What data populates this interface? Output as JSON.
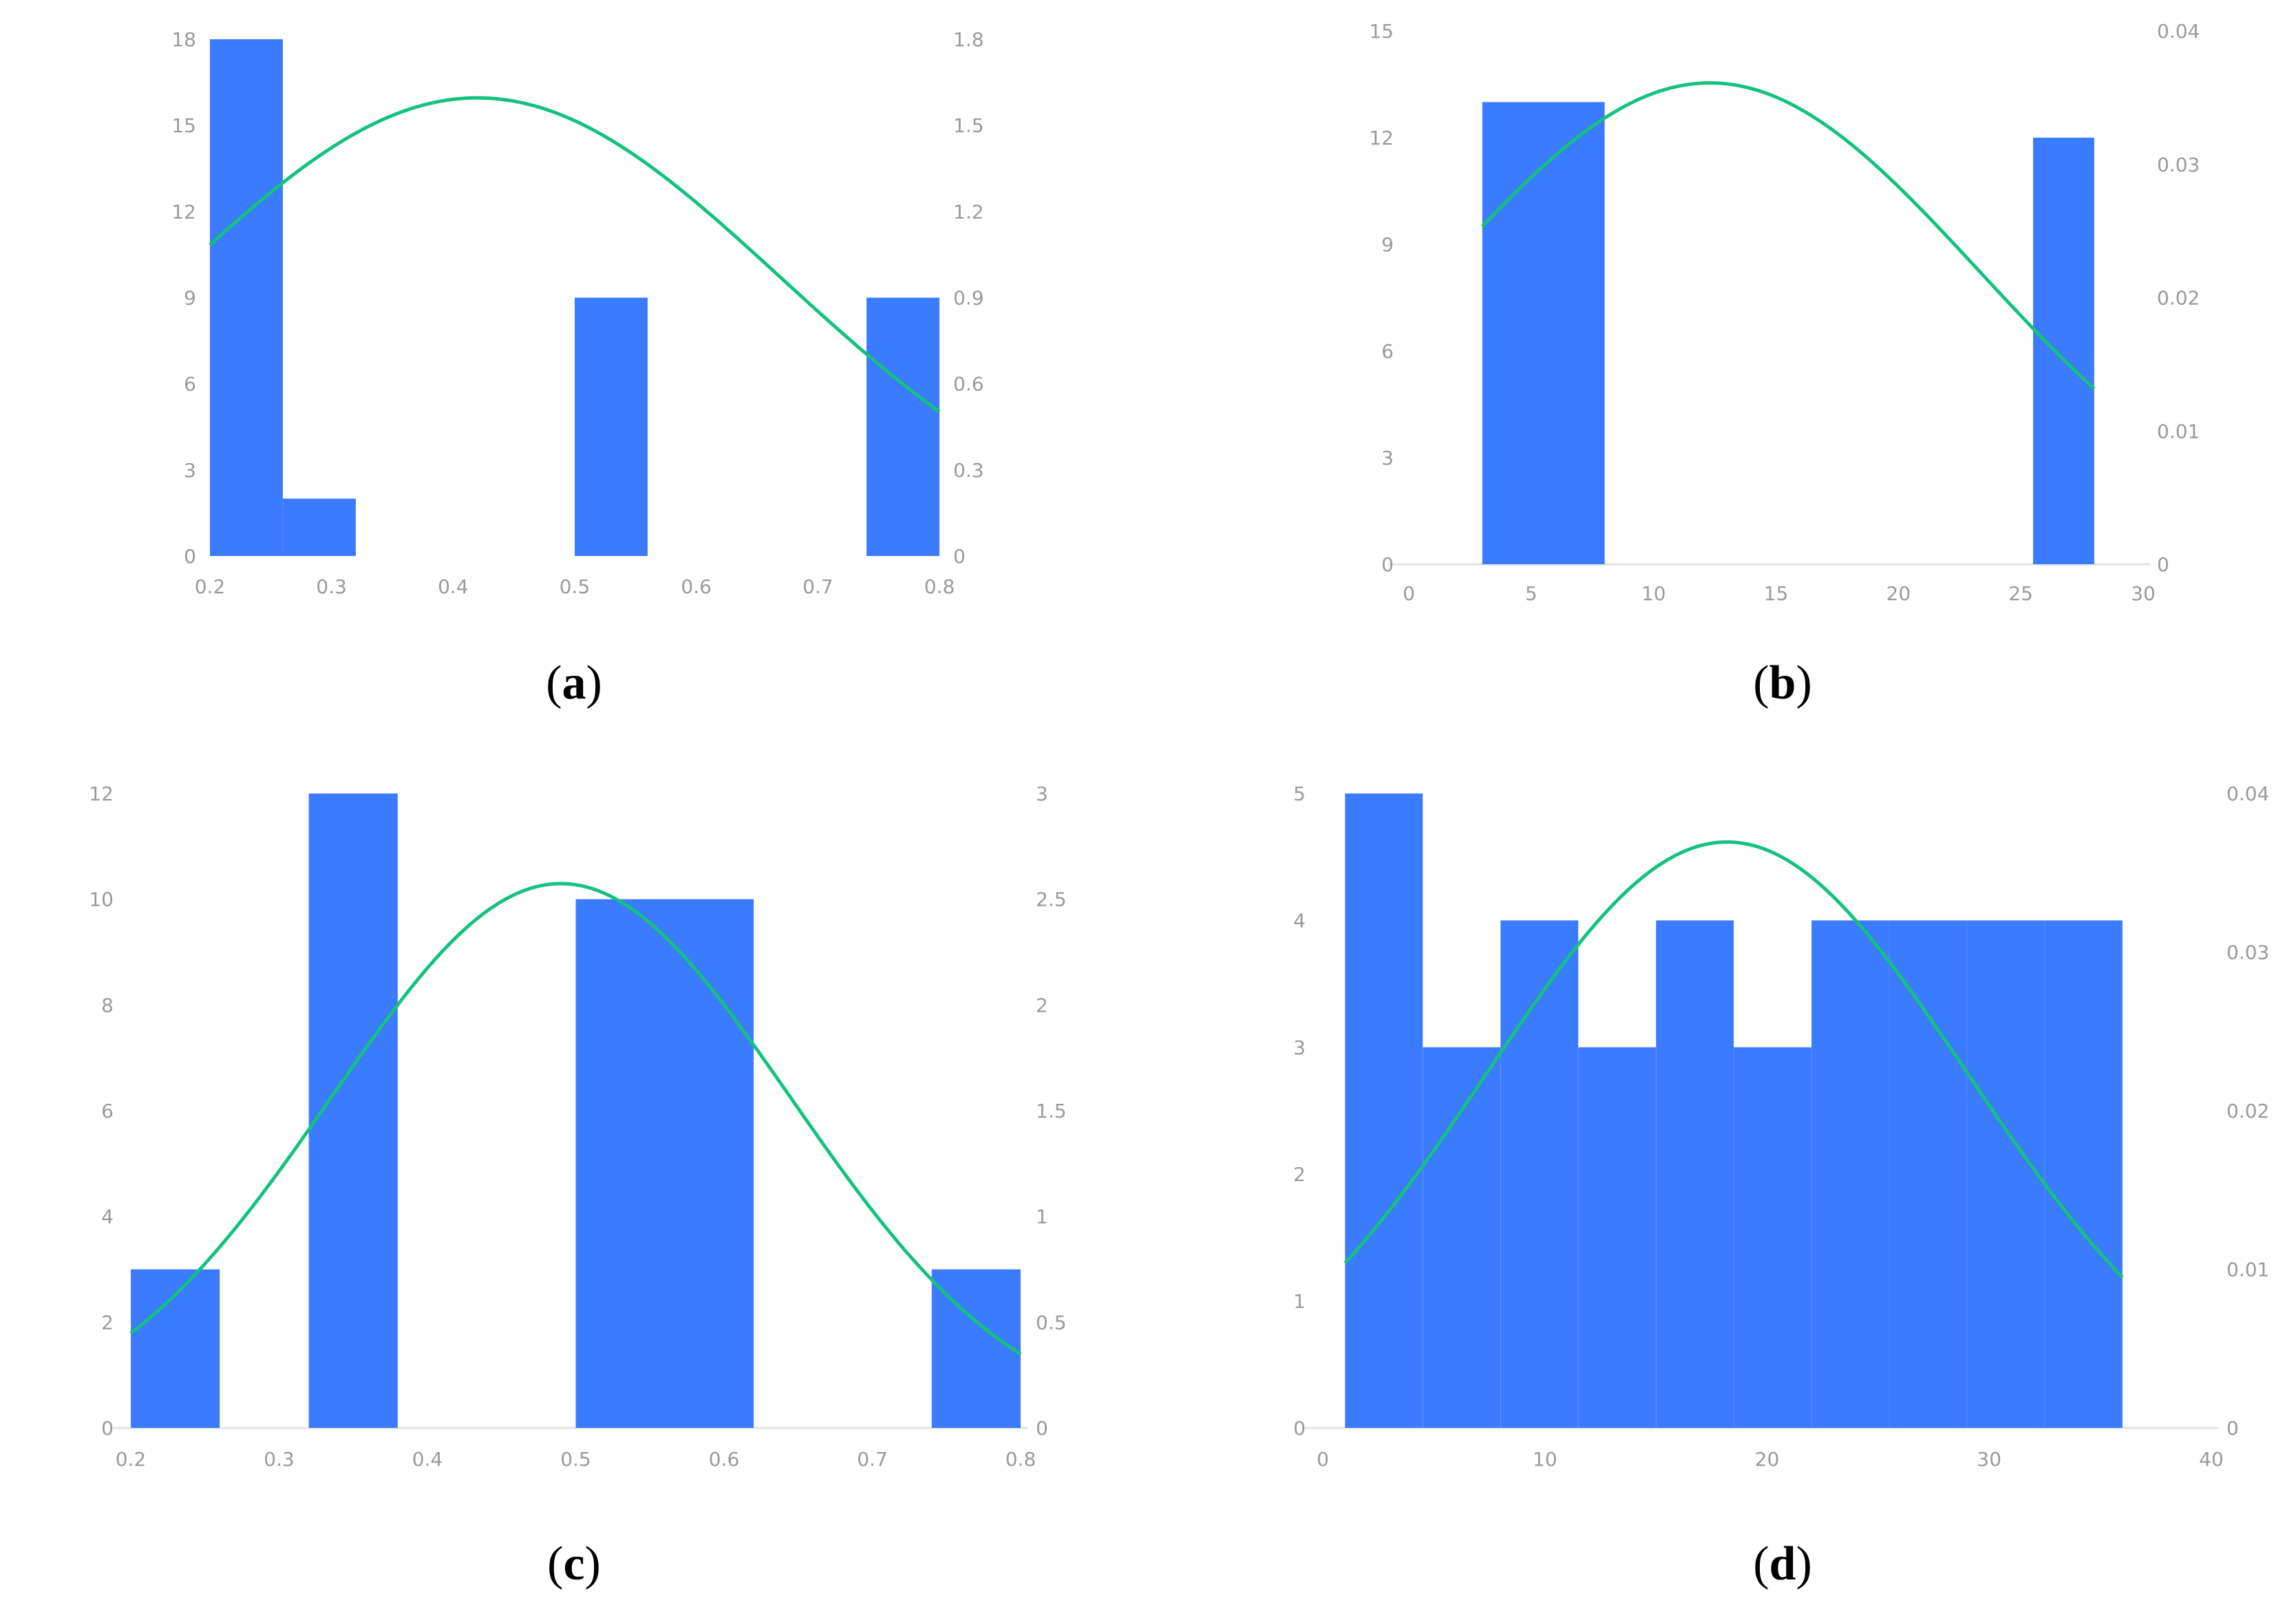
{
  "colors": {
    "bar": "#3a7bff",
    "curve": "#14c27e",
    "axis": "#e3e3e3",
    "tick": "#9a9a9a"
  },
  "chart_data": [
    {
      "panel": "a",
      "type": "bar",
      "bins": [
        {
          "x0": 0.2,
          "x1": 0.26,
          "count": 18
        },
        {
          "x0": 0.26,
          "x1": 0.32,
          "count": 2
        },
        {
          "x0": 0.5,
          "x1": 0.56,
          "count": 9
        },
        {
          "x0": 0.74,
          "x1": 0.8,
          "count": 9
        }
      ],
      "curve": {
        "name": "normal density",
        "mean": 0.42,
        "sd": 0.25
      },
      "xlim": [
        0.2,
        0.8
      ],
      "xticks": [
        0.2,
        0.3,
        0.4,
        0.5,
        0.6,
        0.7,
        0.8
      ],
      "xtick_labels": [
        "0.2",
        "0.3",
        "0.4",
        "0.5",
        "0.6",
        "0.7",
        "0.8"
      ],
      "ylim": [
        0,
        18
      ],
      "yticks": [
        0,
        3,
        6,
        9,
        12,
        15,
        18
      ],
      "ytick_labels": [
        "0",
        "3",
        "6",
        "9",
        "12",
        "15",
        "18"
      ],
      "y2lim": [
        0,
        1.8
      ],
      "y2ticks": [
        0,
        0.3,
        0.6,
        0.9,
        1.2,
        1.5,
        1.8
      ],
      "y2tick_labels": [
        "0",
        "0.3",
        "0.6",
        "0.9",
        "1.2",
        "1.5",
        "1.8"
      ],
      "grid": false,
      "baseline": false
    },
    {
      "panel": "b",
      "type": "bar",
      "bins": [
        {
          "x0": 3,
          "x1": 8,
          "count": 13
        },
        {
          "x0": 25.5,
          "x1": 28,
          "count": 12
        }
      ],
      "curve": {
        "name": "normal density",
        "mean": 12.3,
        "sd": 11.05
      },
      "xlim": [
        0,
        30
      ],
      "xticks": [
        0,
        5,
        10,
        15,
        20,
        25,
        30
      ],
      "xtick_labels": [
        "0",
        "5",
        "10",
        "15",
        "20",
        "25",
        "30"
      ],
      "ylim": [
        0,
        15
      ],
      "yticks": [
        0,
        3,
        6,
        9,
        12,
        15
      ],
      "ytick_labels": [
        "0",
        "3",
        "6",
        "9",
        "12",
        "15"
      ],
      "y2lim": [
        0,
        0.04
      ],
      "y2ticks": [
        0,
        0.01,
        0.02,
        0.03,
        0.04
      ],
      "y2tick_labels": [
        "0",
        "0.01",
        "0.02",
        "0.03",
        "0.04"
      ],
      "grid": false,
      "baseline": true
    },
    {
      "panel": "c",
      "type": "bar",
      "bins": [
        {
          "x0": 0.2,
          "x1": 0.26,
          "count": 3
        },
        {
          "x0": 0.32,
          "x1": 0.38,
          "count": 12
        },
        {
          "x0": 0.5,
          "x1": 0.62,
          "count": 10
        },
        {
          "x0": 0.74,
          "x1": 0.8,
          "count": 3
        }
      ],
      "curve": {
        "name": "normal density",
        "mean": 0.49,
        "sd": 0.155
      },
      "xlim": [
        0.2,
        0.8
      ],
      "xticks": [
        0.2,
        0.3,
        0.4,
        0.5,
        0.6,
        0.7,
        0.8
      ],
      "xtick_labels": [
        "0.2",
        "0.3",
        "0.4",
        "0.5",
        "0.6",
        "0.7",
        "0.8"
      ],
      "ylim": [
        0,
        12
      ],
      "yticks": [
        0,
        2,
        4,
        6,
        8,
        10,
        12
      ],
      "ytick_labels": [
        "0",
        "2",
        "4",
        "6",
        "8",
        "10",
        "12"
      ],
      "y2lim": [
        0,
        3
      ],
      "y2ticks": [
        0,
        0.5,
        1,
        1.5,
        2,
        2.5,
        3
      ],
      "y2tick_labels": [
        "0",
        "0.5",
        "1",
        "1.5",
        "2",
        "2.5",
        "3"
      ],
      "grid": false,
      "baseline": true
    },
    {
      "panel": "d",
      "type": "bar",
      "bins": [
        {
          "x0": 1,
          "x1": 4.5,
          "count": 5
        },
        {
          "x0": 4.5,
          "x1": 8,
          "count": 3
        },
        {
          "x0": 8,
          "x1": 11.5,
          "count": 4
        },
        {
          "x0": 11.5,
          "x1": 15,
          "count": 3
        },
        {
          "x0": 15,
          "x1": 18.5,
          "count": 4
        },
        {
          "x0": 18.5,
          "x1": 22,
          "count": 3
        },
        {
          "x0": 22,
          "x1": 25.5,
          "count": 4
        },
        {
          "x0": 25.5,
          "x1": 29,
          "count": 4
        },
        {
          "x0": 29,
          "x1": 32.5,
          "count": 4
        },
        {
          "x0": 32.5,
          "x1": 36,
          "count": 4
        }
      ],
      "curve": {
        "name": "normal density",
        "mean": 18.2,
        "sd": 10.8
      },
      "xlim": [
        0,
        40
      ],
      "xticks": [
        0,
        10,
        20,
        30,
        40
      ],
      "xtick_labels": [
        "0",
        "10",
        "20",
        "30",
        "40"
      ],
      "ylim": [
        0,
        5
      ],
      "yticks": [
        0,
        1,
        2,
        3,
        4,
        5
      ],
      "ytick_labels": [
        "0",
        "1",
        "2",
        "3",
        "4",
        "5"
      ],
      "y2lim": [
        0,
        0.04
      ],
      "y2ticks": [
        0,
        0.01,
        0.02,
        0.03,
        0.04
      ],
      "y2tick_labels": [
        "0",
        "0.01",
        "0.02",
        "0.03",
        "0.04"
      ],
      "grid": false,
      "baseline": true
    }
  ],
  "panel_labels": [
    {
      "open": "(",
      "letter": "a",
      "close": ")"
    },
    {
      "open": "(",
      "letter": "b",
      "close": ")"
    },
    {
      "open": "(",
      "letter": "c",
      "close": ")"
    },
    {
      "open": "(",
      "letter": "d",
      "close": ")"
    }
  ]
}
